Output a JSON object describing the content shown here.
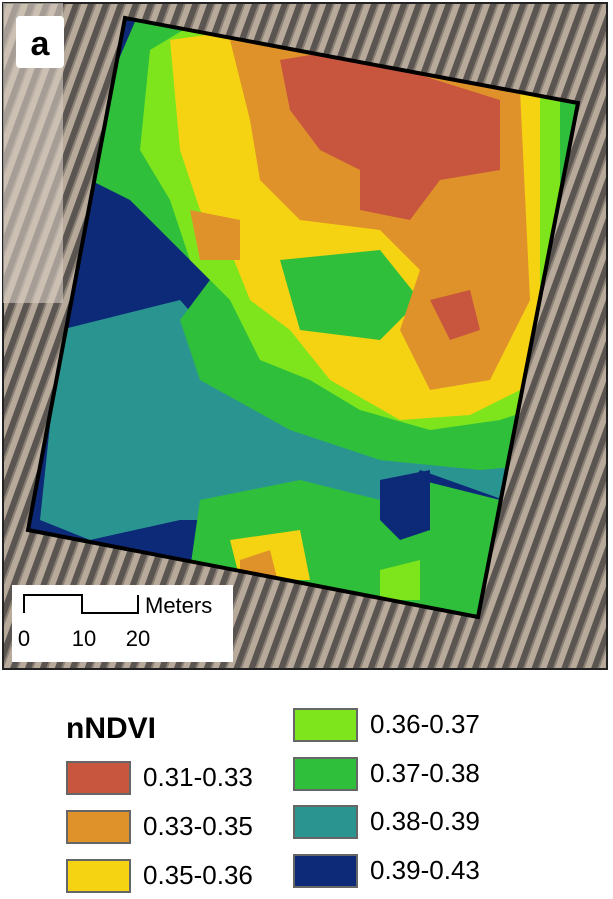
{
  "panel_label": "a",
  "scale_bar": {
    "unit": "Meters",
    "labels": [
      "0",
      "10",
      "20"
    ]
  },
  "legend": {
    "title": "nNDVI",
    "items": [
      {
        "label": "0.31-0.33",
        "color": "#c8553d"
      },
      {
        "label": "0.33-0.35",
        "color": "#e0922a"
      },
      {
        "label": "0.35-0.36",
        "color": "#f5d312"
      },
      {
        "label": "0.36-0.37",
        "color": "#7ee51d"
      },
      {
        "label": "0.37-0.38",
        "color": "#2fbf3a"
      },
      {
        "label": "0.38-0.39",
        "color": "#2a9590"
      },
      {
        "label": "0.39-0.43",
        "color": "#0d2a78"
      }
    ]
  }
}
